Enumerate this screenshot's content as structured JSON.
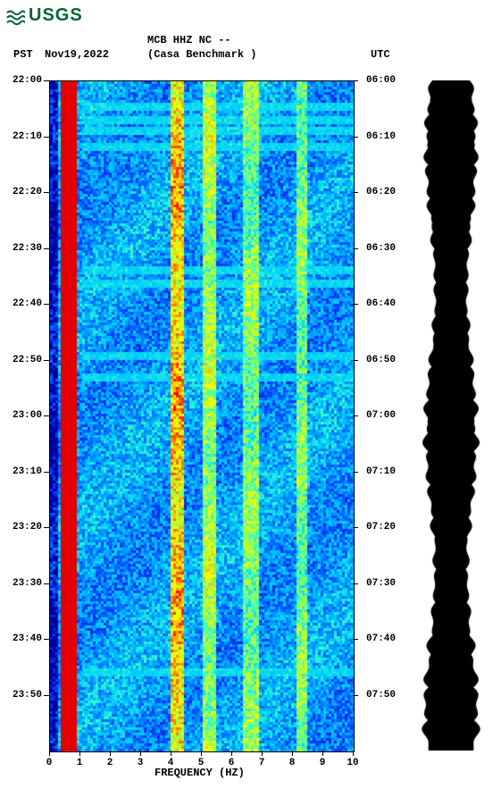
{
  "logo": {
    "text": "USGS"
  },
  "header": {
    "station_line": "MCB HHZ NC --",
    "pst_label": "PST",
    "date": "Nov19,2022",
    "station_name": "(Casa Benchmark )",
    "utc_label": "UTC"
  },
  "chart": {
    "type": "spectrogram",
    "xlabel": "FREQUENCY (HZ)",
    "xlim": [
      0,
      10
    ],
    "xtick_step": 1,
    "xtick_labels": [
      "0",
      "1",
      "2",
      "3",
      "4",
      "5",
      "6",
      "7",
      "8",
      "9",
      "10"
    ],
    "ylim_pst": [
      "22:00",
      "23:59"
    ],
    "ylim_utc": [
      "06:00",
      "07:59"
    ],
    "ytick_left": [
      "22:00",
      "22:10",
      "22:20",
      "22:30",
      "22:40",
      "22:50",
      "23:00",
      "23:10",
      "23:20",
      "23:30",
      "23:40",
      "23:50"
    ],
    "ytick_right": [
      "06:00",
      "06:10",
      "06:20",
      "06:30",
      "06:40",
      "06:50",
      "07:00",
      "07:10",
      "07:20",
      "07:30",
      "07:40",
      "07:50"
    ],
    "colors": {
      "background": "#ffffff",
      "text": "#000000",
      "logo": "#006633"
    },
    "colormap_stops": [
      "#0000a0",
      "#0040ff",
      "#0090ff",
      "#00d0ff",
      "#40ffc0",
      "#a0ff40",
      "#ffff00",
      "#ff8000",
      "#ff0000",
      "#a00000"
    ],
    "freq_bands_intensity": {
      "comment": "approximate relative intensity profile across 0-10 Hz; high at ~0.5Hz, elevated streaks at ~4Hz and ~5Hz and ~6.5Hz and ~8Hz",
      "low_band": {
        "range_hz": [
          0.3,
          0.8
        ],
        "intensity": 1.0
      },
      "mid_streak_a": {
        "range_hz": [
          3.9,
          4.3
        ],
        "intensity": 0.7
      },
      "mid_streak_b": {
        "range_hz": [
          5.0,
          5.4
        ],
        "intensity": 0.55
      },
      "high_streak_a": {
        "range_hz": [
          6.3,
          6.8
        ],
        "intensity": 0.5
      },
      "high_streak_b": {
        "range_hz": [
          8.0,
          8.4
        ],
        "intensity": 0.5
      },
      "base": 0.25
    },
    "horizontal_events": {
      "comment": "rows (fraction of plot height from top) where brief broadband cyan streaks appear",
      "rows": [
        0.035,
        0.055,
        0.07,
        0.095,
        0.28,
        0.3,
        0.41,
        0.44,
        0.88
      ]
    }
  },
  "waveform": {
    "type": "amplitude-envelope",
    "color": "#000000",
    "background": "#ffffff",
    "mean_amplitude": 0.9
  },
  "fonts": {
    "family": "Courier New, monospace",
    "header_size_pt": 12,
    "tick_size_pt": 11,
    "label_size_pt": 12
  }
}
